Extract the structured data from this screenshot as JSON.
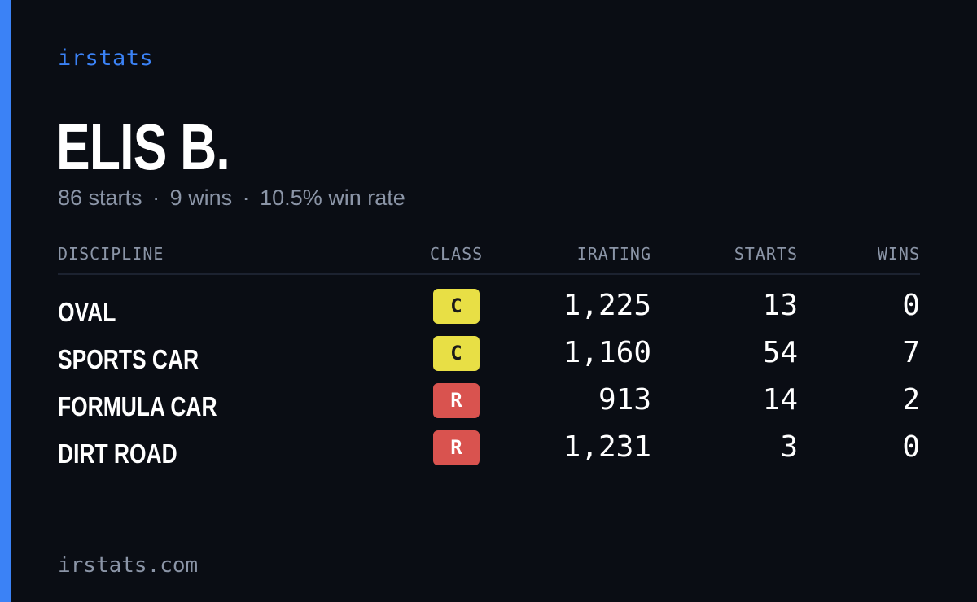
{
  "brand": "irstats",
  "driver": {
    "name": "ELIS B."
  },
  "summary": {
    "starts": "86 starts",
    "wins": "9 wins",
    "win_rate": "10.5% win rate",
    "separator": "·"
  },
  "table": {
    "headers": {
      "discipline": "DISCIPLINE",
      "class": "CLASS",
      "irating": "IRATING",
      "starts": "STARTS",
      "wins": "WINS"
    },
    "rows": [
      {
        "discipline": "OVAL",
        "class": "C",
        "irating": "1,225",
        "starts": "13",
        "wins": "0"
      },
      {
        "discipline": "SPORTS CAR",
        "class": "C",
        "irating": "1,160",
        "starts": "54",
        "wins": "7"
      },
      {
        "discipline": "FORMULA CAR",
        "class": "R",
        "irating": "913",
        "starts": "14",
        "wins": "2"
      },
      {
        "discipline": "DIRT ROAD",
        "class": "R",
        "irating": "1,231",
        "starts": "3",
        "wins": "0"
      }
    ]
  },
  "class_colors": {
    "C": {
      "bg": "#e8df45",
      "fg": "#1a1a1a"
    },
    "R": {
      "bg": "#d9534f",
      "fg": "#ffffff"
    }
  },
  "colors": {
    "accent": "#3b82f6",
    "background": "#0a0d14",
    "muted": "#8b95a7"
  },
  "footer": "irstats.com"
}
